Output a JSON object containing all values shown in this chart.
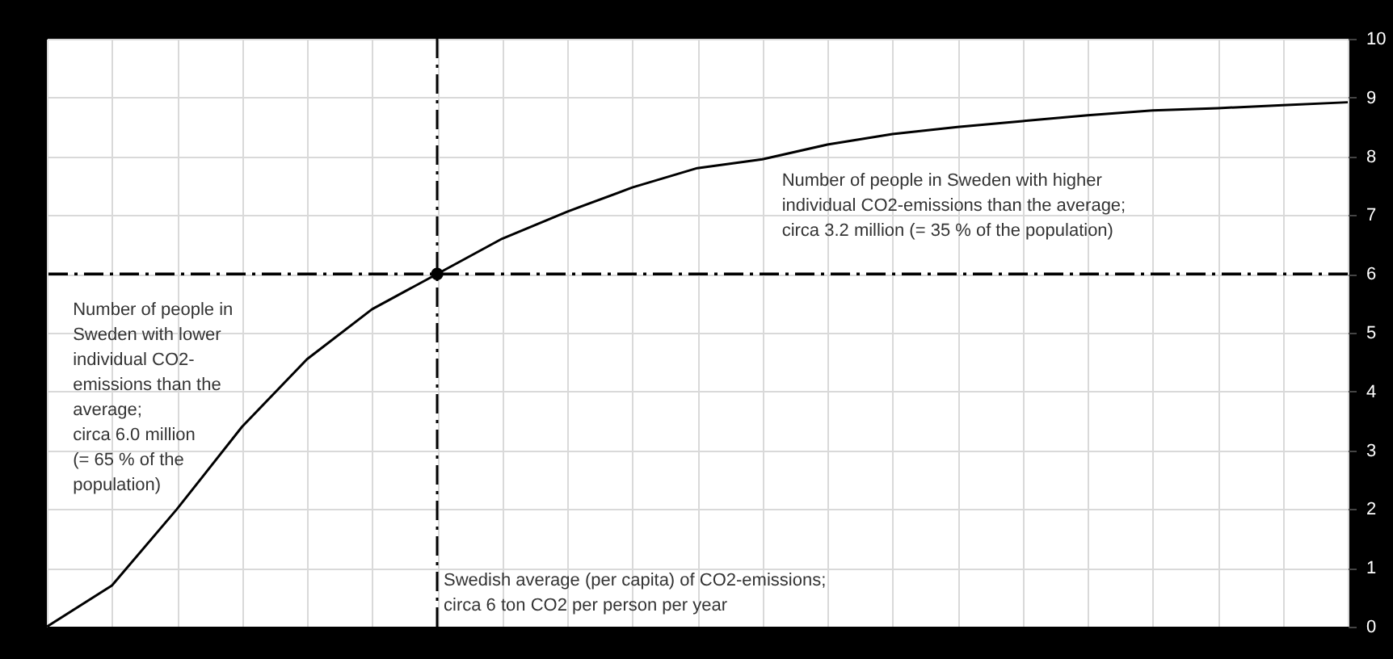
{
  "chart_data": {
    "type": "line",
    "categories": [
      null,
      null,
      null,
      null,
      null,
      null,
      null,
      null,
      null,
      null,
      null,
      null,
      null,
      null,
      null,
      null,
      null,
      null,
      null,
      null,
      null
    ],
    "series": [
      {
        "color": "#000000",
        "marker": "none",
        "line_style": "solid",
        "values": [
          0,
          0.7,
          2.0,
          3.4,
          4.55,
          5.4,
          6.0,
          6.6,
          7.06,
          7.47,
          7.8,
          7.95,
          8.2,
          8.38,
          8.5,
          8.6,
          8.7,
          8.78,
          8.82,
          8.87,
          8.92
        ]
      }
    ],
    "ylim": [
      0,
      10
    ],
    "yticks": [
      0,
      1,
      2,
      3,
      4,
      5,
      6,
      7,
      8,
      9,
      10
    ],
    "tick_labels": "y",
    "grid": true,
    "ref_lines": [
      {
        "axis": "y",
        "value": 6,
        "color": "#000000",
        "line_style": "dashed"
      }
    ],
    "annotations": [
      "Number of people in\nSweden with lower\nindividual CO2-\nemissions than the\naverage;\ncirca 6.0 million\n(= 65 % of the\npopulation)",
      "Number of people in Sweden with higher\nindividual CO2-emissions than the average;\ncirca 3.2 million (= 35 % of the population)",
      "Swedish average (per capita) of CO2-emissions;\ncirca 6 ton CO2 per person per year"
    ]
  }
}
